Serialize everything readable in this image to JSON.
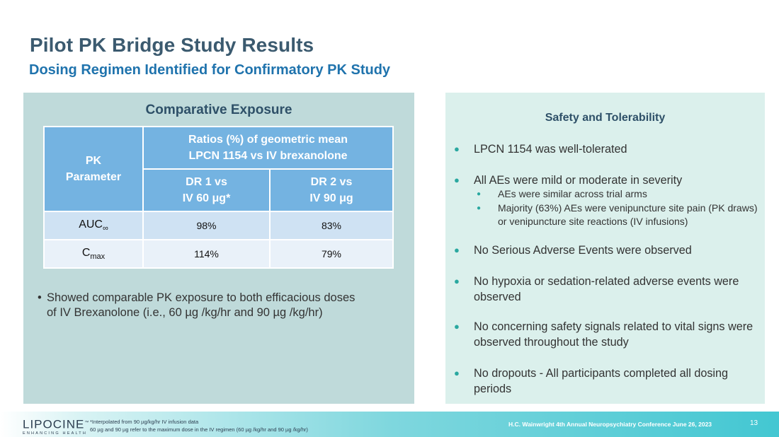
{
  "header": {
    "title": "Pilot PK Bridge Study Results",
    "subtitle": "Dosing Regimen Identified for Confirmatory PK Study"
  },
  "left": {
    "title": "Comparative Exposure",
    "table": {
      "param_header_line1": "PK",
      "param_header_line2": "Parameter",
      "ratio_header_line1": "Ratios (%) of geometric mean",
      "ratio_header_line2": "LPCN 1154 vs IV brexanolone",
      "col1_line1": "DR 1 vs",
      "col1_line2": "IV 60 μg*",
      "col2_line1": "DR 2 vs",
      "col2_line2": "IV 90 μg",
      "rows": [
        {
          "param": "AUC",
          "sub": "∞",
          "dr1": "98%",
          "dr2": "83%"
        },
        {
          "param": "C",
          "sub": "max",
          "dr1": "114%",
          "dr2": "79%"
        }
      ]
    },
    "bullet_symbol": "•",
    "bullet": "Showed comparable PK exposure to both efficacious doses of IV Brexanolone (i.e., 60 µg /kg/hr and 90 µg /kg/hr)"
  },
  "right": {
    "title": "Safety and Tolerability",
    "bullet_symbol": "●",
    "items": [
      "LPCN 1154 was well-tolerated",
      "All AEs were mild or moderate in severity",
      "No Serious Adverse Events were observed",
      "No hypoxia or sedation-related adverse events were observed",
      "No concerning safety signals related to vital signs were observed throughout the study",
      "No dropouts - All participants completed all dosing periods"
    ],
    "subitems": [
      "AEs were similar across trial arms",
      "Majority (63%) AEs were venipuncture site pain (PK draws) or venipuncture site reactions (IV infusions)"
    ]
  },
  "footer": {
    "logo_name": "LIPOCINE",
    "logo_tm": "™",
    "logo_tagline": "ENHANCING HEALTH",
    "note1": "*Interpolated from 90 µg/kg/hr IV infusion data",
    "note2": "60 µg and 90 µg refer to the maximum dose in the IV regimen (60 µg /kg/hr and 90 µg /kg/hr)",
    "conference": "H.C. Wainwright 4th Annual Neuropsychiatry Conference June 26, 2023",
    "page_number": "13"
  }
}
